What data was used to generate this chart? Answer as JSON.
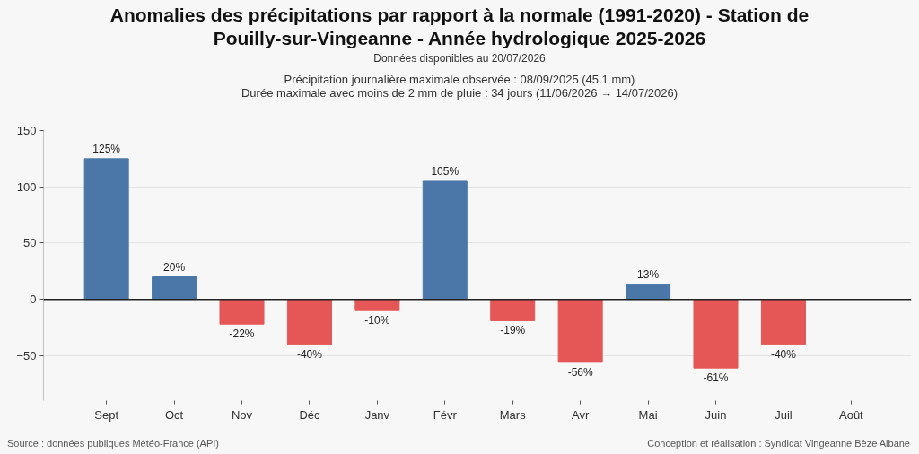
{
  "chart_data": {
    "type": "bar",
    "title": "Anomalies des précipitations par rapport à la normale (1991-2020) - Station de Pouilly-sur-Vingeanne - Année hydrologique 2025-2026",
    "subtitle": "Données disponibles au 20/07/2026",
    "annotations": [
      "Précipitation journalière maximale observée : 08/09/2025 (45.1 mm)",
      "Durée maximale avec moins de 2 mm de pluie : 34 jours (11/06/2026 → 14/07/2026)",
      "Source : données publiques Météo-France (API)",
      "Conception et réalisation : Syndicat Vingeanne Bèze Albane"
    ],
    "categories": [
      "Sept",
      "Oct",
      "Nov",
      "Déc",
      "Janv",
      "Févr",
      "Mars",
      "Avr",
      "Mai",
      "Juin",
      "Juil",
      "Août"
    ],
    "values": [
      125,
      20,
      -22,
      -40,
      -10,
      105,
      -19,
      -56,
      13,
      -61,
      -40,
      null
    ],
    "colors": [
      "#4a77a7",
      "#4a77a7",
      "#e45756",
      "#e45756",
      "#e45756",
      "#4a77a7",
      "#e45756",
      "#e45756",
      "#4a77a7",
      "#e45756",
      "#e45756",
      null
    ],
    "value_labels": [
      "125%",
      "20%",
      "-22%",
      "-40%",
      "-10%",
      "105%",
      "-19%",
      "-56%",
      "13%",
      "-61%",
      "-40%",
      null
    ],
    "ylim": [
      -90,
      150
    ],
    "yticks": [
      {
        "value": -50,
        "label": "−50"
      },
      0,
      50,
      100,
      150
    ],
    "grid": "y",
    "ref_lines": [
      {
        "axis": "y",
        "value": 0,
        "color": "#222222"
      }
    ]
  }
}
